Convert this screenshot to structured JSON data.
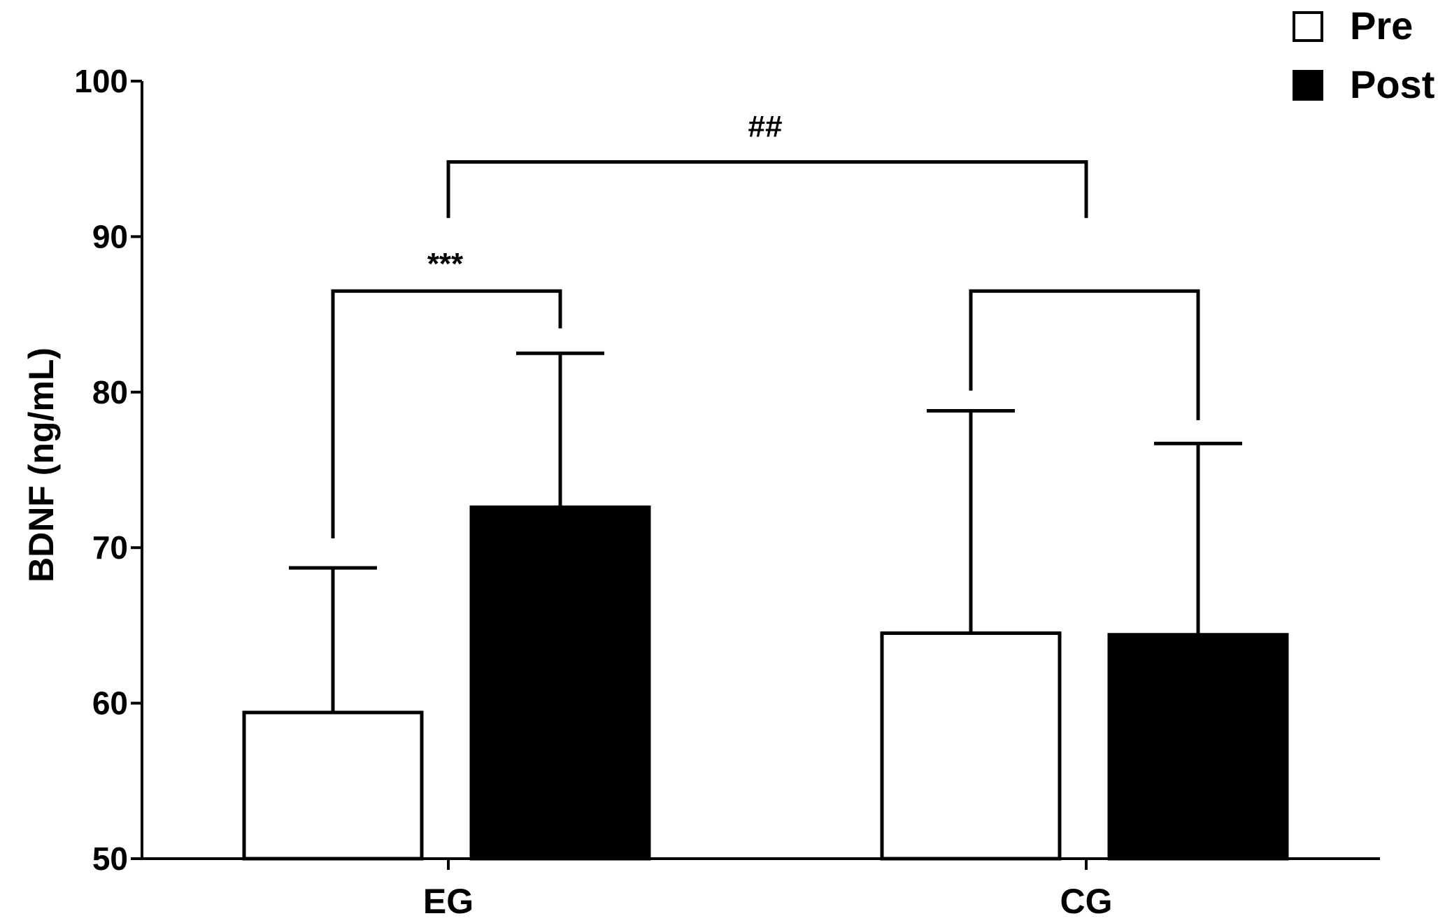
{
  "chart_data": {
    "type": "bar",
    "categories": [
      "EG",
      "CG"
    ],
    "series": [
      {
        "name": "Pre",
        "values": [
          59.4,
          64.5
        ],
        "error_upper": [
          68.7,
          78.8
        ],
        "fill": "#ffffff"
      },
      {
        "name": "Post",
        "values": [
          72.6,
          64.4
        ],
        "error_upper": [
          82.5,
          76.7
        ],
        "fill": "#000000"
      }
    ],
    "xlabel": "",
    "ylabel": "BDNF (ng/mL)",
    "ylim": [
      50,
      100
    ],
    "yticks": [
      50,
      60,
      70,
      80,
      90,
      100
    ],
    "tick_labels": [
      "50",
      "60",
      "70",
      "80",
      "90",
      "100"
    ],
    "grid": false,
    "legend": {
      "position": "top-right",
      "entries": [
        "Pre",
        "Post"
      ]
    },
    "significance": [
      {
        "label": "***",
        "between": "EG Pre vs EG Post"
      },
      {
        "label": "",
        "between": "CG Pre vs CG Post"
      },
      {
        "label": "##",
        "between": "EG vs CG"
      }
    ],
    "colors": {
      "axis": "#000000",
      "pre": "#ffffff",
      "post": "#000000"
    }
  }
}
